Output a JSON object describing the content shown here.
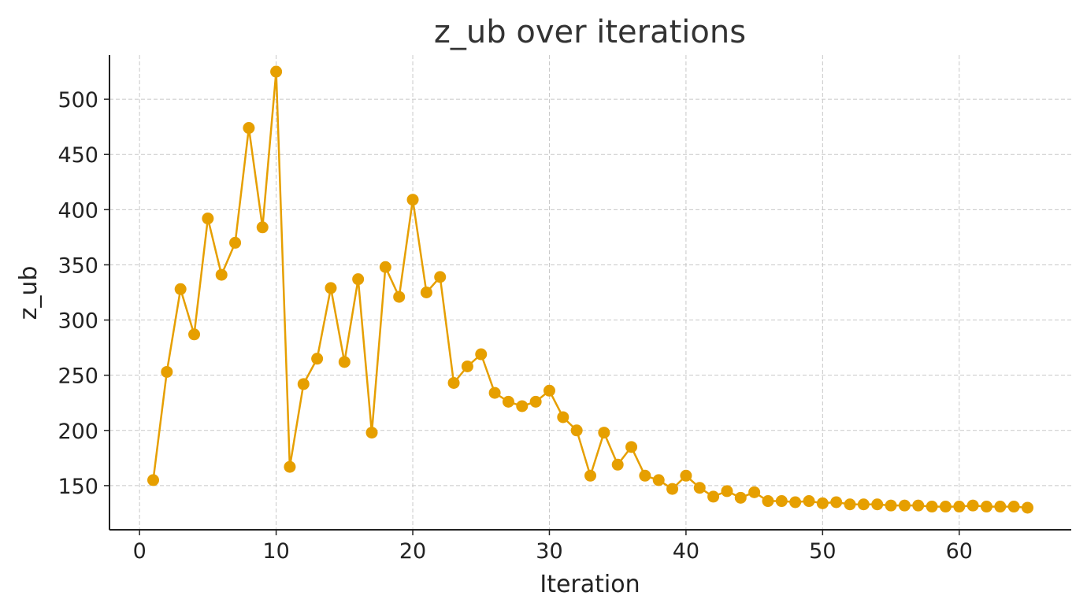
{
  "chart_data": {
    "type": "line",
    "title": "z_ub over iterations",
    "xlabel": "Iteration",
    "ylabel": "z_ub",
    "xlim": [
      -2.2,
      68.2
    ],
    "ylim": [
      110,
      540
    ],
    "xticks": [
      0,
      10,
      20,
      30,
      40,
      50,
      60
    ],
    "yticks": [
      150,
      200,
      250,
      300,
      350,
      400,
      450,
      500
    ],
    "grid": true,
    "color": "#e69f00",
    "series": [
      {
        "x": [
          1,
          2,
          3,
          4,
          5,
          6,
          7,
          8,
          9,
          10,
          11,
          12,
          13,
          14,
          15,
          16,
          17,
          18,
          19,
          20,
          21,
          22,
          23,
          24,
          25,
          26,
          27,
          28,
          29,
          30,
          31,
          32,
          33,
          34,
          35,
          36,
          37,
          38,
          39,
          40,
          41,
          42,
          43,
          44,
          45,
          46,
          47,
          48,
          49,
          50,
          51,
          52,
          53,
          54,
          55,
          56,
          57,
          58,
          59,
          60,
          61,
          62,
          63,
          64,
          65
        ],
        "values": [
          155,
          253,
          328,
          287,
          392,
          341,
          370,
          474,
          384,
          525,
          167,
          242,
          265,
          329,
          262,
          337,
          198,
          348,
          321,
          409,
          325,
          339,
          243,
          258,
          269,
          234,
          226,
          222,
          226,
          236,
          212,
          200,
          159,
          198,
          169,
          185,
          159,
          155,
          147,
          159,
          148,
          140,
          145,
          139,
          144,
          136,
          136,
          135,
          136,
          134,
          135,
          133,
          133,
          133,
          132,
          132,
          132,
          131,
          131,
          131,
          132,
          131,
          131,
          131,
          130
        ]
      }
    ]
  }
}
